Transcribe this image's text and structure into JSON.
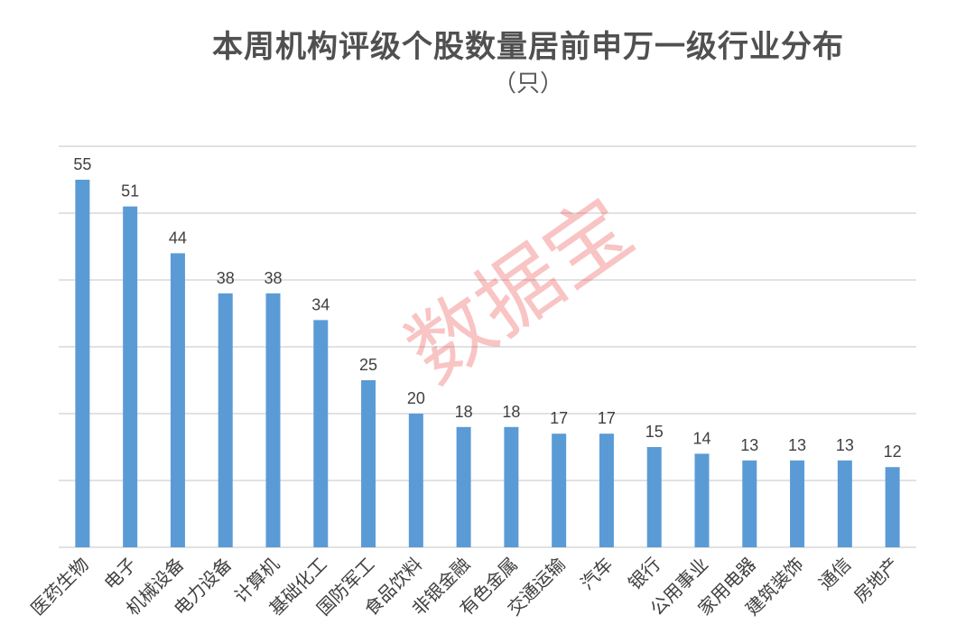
{
  "chart_data": {
    "type": "bar",
    "title": "本周机构评级个股数量居前申万一级行业分布",
    "subtitle": "（只）",
    "xlabel": "",
    "ylabel": "",
    "categories": [
      "医药生物",
      "电子",
      "机械设备",
      "电力设备",
      "计算机",
      "基础化工",
      "国防军工",
      "食品饮料",
      "非银金融",
      "有色金属",
      "交通运输",
      "汽车",
      "银行",
      "公用事业",
      "家用电器",
      "建筑装饰",
      "通信",
      "房地产"
    ],
    "values": [
      55,
      51,
      44,
      38,
      38,
      34,
      25,
      20,
      18,
      18,
      17,
      17,
      15,
      14,
      13,
      13,
      13,
      12
    ],
    "ylim": [
      0,
      60
    ],
    "grid": true,
    "legend": "none",
    "bar_color": "#5B9BD5",
    "grid_color": "#D9D9D9",
    "label_color": "#404040"
  },
  "watermark": "数据宝"
}
